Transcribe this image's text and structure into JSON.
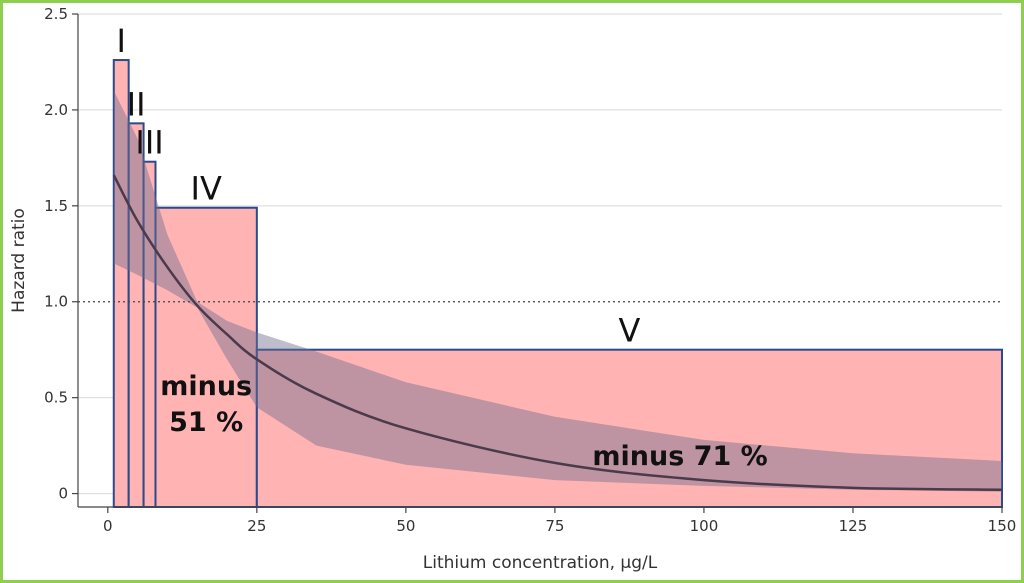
{
  "chart_data": {
    "type": "line",
    "xlabel": "Lithium concentration, µg/L",
    "ylabel": "Hazard ratio",
    "xlim": [
      -5,
      150
    ],
    "ylim": [
      -0.07,
      2.5
    ],
    "x_ticks": [
      0,
      25,
      50,
      75,
      100,
      125,
      150
    ],
    "y_ticks": [
      0,
      0.5,
      1.0,
      1.5,
      2.0,
      2.5
    ],
    "x_tick_labels": [
      "0",
      "25",
      "50",
      "75",
      "100",
      "125",
      "150"
    ],
    "y_tick_labels": [
      "0",
      "0.5",
      "1.0",
      "1.5",
      "2.0",
      "2.5"
    ],
    "reference_line": 1.0,
    "curve": {
      "x": [
        1,
        5,
        10,
        15,
        20,
        25,
        35,
        50,
        75,
        100,
        125,
        150
      ],
      "y": [
        1.66,
        1.42,
        1.18,
        0.98,
        0.83,
        0.7,
        0.52,
        0.34,
        0.16,
        0.07,
        0.03,
        0.02
      ]
    },
    "confidence_band": {
      "x": [
        1,
        5,
        10,
        15,
        20,
        25,
        35,
        50,
        75,
        100,
        125,
        150
      ],
      "lower": [
        1.2,
        1.14,
        1.06,
        0.97,
        0.7,
        0.45,
        0.25,
        0.15,
        0.07,
        0.04,
        0.02,
        0.01
      ],
      "upper": [
        2.1,
        1.85,
        1.35,
        1.0,
        0.9,
        0.84,
        0.74,
        0.58,
        0.4,
        0.28,
        0.21,
        0.17
      ]
    },
    "bars": [
      {
        "label": "I",
        "x0": 1,
        "x1": 3.5,
        "value": 2.26
      },
      {
        "label": "II",
        "x0": 3.5,
        "x1": 6,
        "value": 1.93
      },
      {
        "label": "III",
        "x0": 6,
        "x1": 8,
        "value": 1.73
      },
      {
        "label": "IV",
        "x0": 8,
        "x1": 25,
        "value": 1.49
      },
      {
        "label": "V",
        "x0": 25,
        "x1": 150,
        "value": 0.75
      }
    ],
    "annotations": [
      {
        "lines": [
          "minus",
          "51 %"
        ],
        "x": 16.5,
        "y": 0.42
      },
      {
        "lines": [
          "minus 71 %"
        ],
        "x": 96,
        "y": 0.15
      }
    ],
    "grid": true,
    "colors": {
      "bar_fill": "#ffb3b3",
      "bar_stroke": "#2b4a8b",
      "curve": "#4a3a4a",
      "band": "#6f6d8f",
      "frame": "#8fcf4f"
    }
  }
}
